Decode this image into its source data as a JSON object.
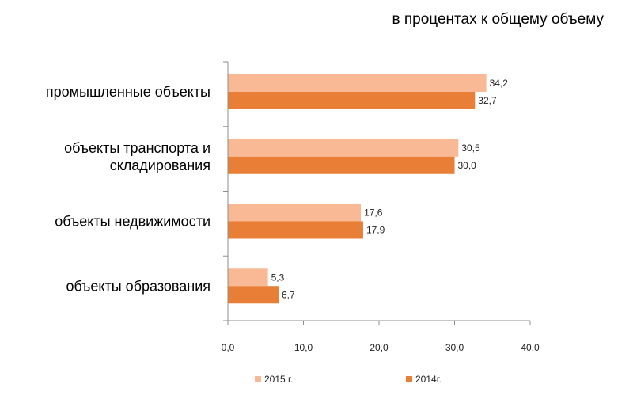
{
  "chart_data": {
    "type": "bar",
    "orientation": "horizontal",
    "subtitle": "в процентах к общему объему",
    "categories": [
      [
        "промышленные объекты"
      ],
      [
        "объекты транспорта и",
        "складирования"
      ],
      [
        "объекты недвижимости"
      ],
      [
        "объекты образования"
      ]
    ],
    "series": [
      {
        "name": "2015 г.",
        "color": "#f9b994",
        "values": [
          34.2,
          30.5,
          17.6,
          5.3
        ],
        "labels": [
          "34,2",
          "30,5",
          "17,6",
          "5,3"
        ]
      },
      {
        "name": "2014г.",
        "color": "#e97f36",
        "values": [
          32.7,
          30.0,
          17.9,
          6.7
        ],
        "labels": [
          "32,7",
          "30,0",
          "17,9",
          "6,7"
        ]
      }
    ],
    "xlim": [
      0,
      40
    ],
    "xticks": [
      0,
      10,
      20,
      30,
      40
    ],
    "xtick_labels": [
      "0,0",
      "10,0",
      "20,0",
      "30,0",
      "40,0"
    ],
    "grid": false,
    "legend_position": "bottom"
  }
}
